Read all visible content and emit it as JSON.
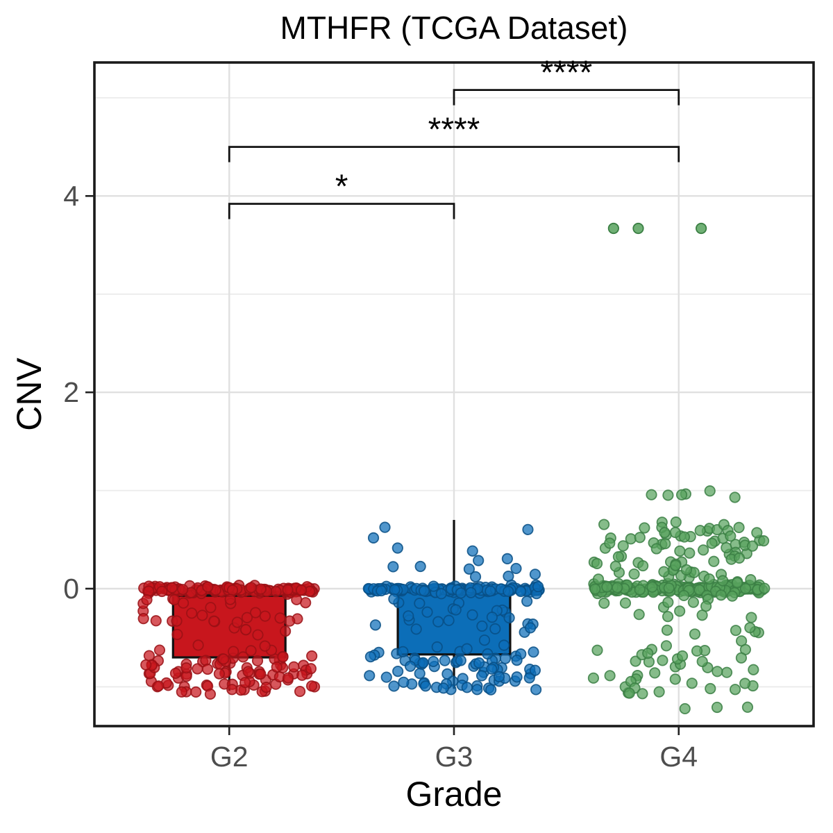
{
  "chart_data": {
    "type": "boxplot",
    "title": "MTHFR (TCGA Dataset)",
    "xlabel": "Grade",
    "ylabel": "CNV",
    "categories": [
      "G2",
      "G3",
      "G4"
    ],
    "y_ticks": [
      0,
      2,
      4
    ],
    "y_minor_gridlines": [
      -1,
      1,
      3,
      5
    ],
    "ylim": [
      -1.4,
      5.36
    ],
    "grid": true,
    "legend": "none",
    "groups": [
      {
        "name": "G2",
        "color": "#C8161D",
        "point_stroke": "#991015",
        "jitter_seed": 42,
        "box": {
          "q1": -0.7,
          "median": -0.07,
          "q3": -0.03,
          "whisker_low": -1.04,
          "whisker_high": 0.0
        },
        "point_clusters": [
          {
            "dist": "normal",
            "n": 130,
            "mean": -0.01,
            "sd": 0.018
          },
          {
            "dist": "uniform",
            "n": 82,
            "low": -1.05,
            "high": -0.68
          },
          {
            "dist": "uniform",
            "n": 38,
            "low": -0.66,
            "high": -0.1
          },
          {
            "dist": "uniform",
            "n": 4,
            "low": -1.1,
            "high": -1.05
          }
        ]
      },
      {
        "name": "G3",
        "color": "#0C6EB8",
        "point_stroke": "#084F85",
        "jitter_seed": 7,
        "box": {
          "q1": -0.67,
          "median": -0.03,
          "q3": 0.0,
          "whisker_low": -1.02,
          "whisker_high": 0.7
        },
        "point_clusters": [
          {
            "dist": "normal",
            "n": 118,
            "mean": -0.01,
            "sd": 0.018
          },
          {
            "dist": "uniform",
            "n": 72,
            "low": -1.03,
            "high": -0.64
          },
          {
            "dist": "uniform",
            "n": 30,
            "low": -0.62,
            "high": -0.1
          },
          {
            "dist": "uniform",
            "n": 14,
            "low": 0.08,
            "high": 0.73
          }
        ]
      },
      {
        "name": "G4",
        "color": "#57A25D",
        "point_stroke": "#3B7F44",
        "jitter_seed": 13,
        "box": {
          "q1": -0.03,
          "median": 0.0,
          "q3": 0.02,
          "whisker_low": -0.07,
          "whisker_high": 0.05
        },
        "point_clusters": [
          {
            "dist": "normal",
            "n": 205,
            "mean": 0.0,
            "sd": 0.02
          },
          {
            "dist": "uniform",
            "n": 80,
            "low": 0.05,
            "high": 0.68
          },
          {
            "dist": "uniform",
            "n": 6,
            "low": 0.93,
            "high": 1.02
          },
          {
            "dist": "uniform",
            "n": 62,
            "low": -1.08,
            "high": -0.06
          },
          {
            "dist": "uniform",
            "n": 3,
            "low": -1.26,
            "high": -1.1
          }
        ]
      }
    ],
    "outliers": [
      {
        "group": "G4",
        "x_offset": -0.29,
        "y": 3.67
      },
      {
        "group": "G4",
        "x_offset": -0.18,
        "y": 3.67
      },
      {
        "group": "G4",
        "x_offset": 0.1,
        "y": 3.67
      }
    ],
    "significance_brackets": [
      {
        "from": "G2",
        "to": "G3",
        "label": "*",
        "y": 3.92
      },
      {
        "from": "G2",
        "to": "G4",
        "label": "****",
        "y": 4.5
      },
      {
        "from": "G3",
        "to": "G4",
        "label": "****",
        "y": 5.08
      }
    ],
    "colors": {
      "panel_border": "#1a1a1a",
      "box_stroke": "#111111",
      "grid_major": "#e0e0e0",
      "grid_minor": "#ebebeb",
      "tick_text": "#4d4d4d",
      "bracket": "#111111"
    }
  }
}
